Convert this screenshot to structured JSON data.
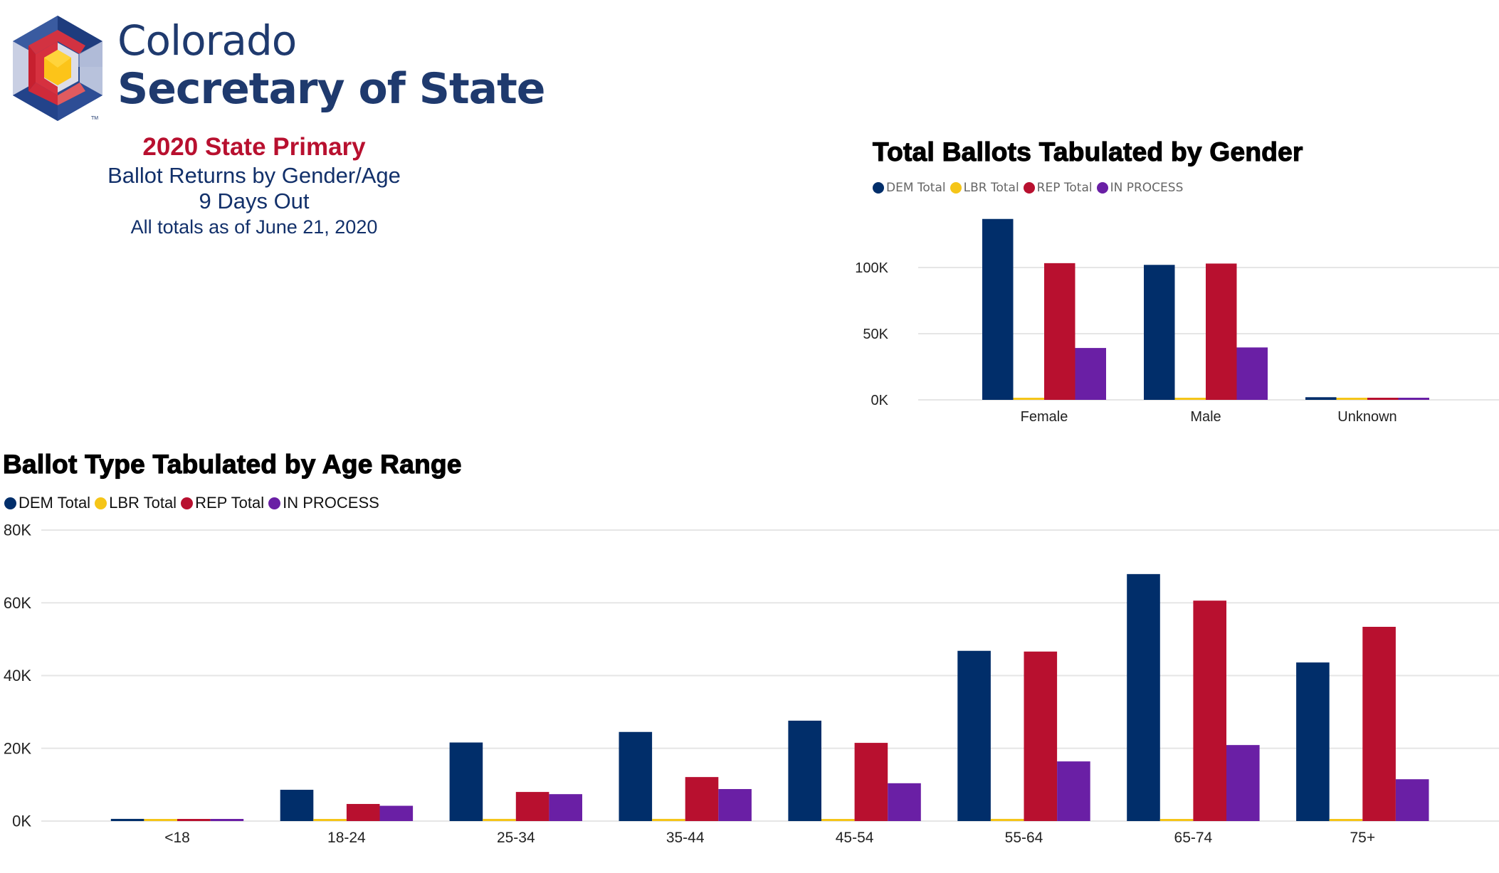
{
  "header": {
    "brand_line1": "Colorado",
    "brand_line2": "Secretary of State",
    "trademark": "TM",
    "report_title": "2020 State Primary",
    "report_subtitle": "Ballot Returns by Gender/Age",
    "days_out": "9 Days Out",
    "as_of": "All totals as of June 21, 2020"
  },
  "colors": {
    "dem": "#012e6a",
    "lbr": "#f5c518",
    "rep": "#b8102f",
    "in_process": "#6a1fa5",
    "brand_navy": "#1f3a6e",
    "brand_red": "#b8102f",
    "gridline": "#e6e6e6"
  },
  "legend": [
    {
      "key": "dem",
      "label": "DEM Total"
    },
    {
      "key": "lbr",
      "label": "LBR Total"
    },
    {
      "key": "rep",
      "label": "REP Total"
    },
    {
      "key": "in_process",
      "label": "IN PROCESS"
    }
  ],
  "chart_data": [
    {
      "id": "gender",
      "type": "bar",
      "title": "Total Ballots Tabulated by Gender",
      "xlabel": "",
      "ylabel": "",
      "categories": [
        "Female",
        "Male",
        "Unknown"
      ],
      "series": [
        {
          "name": "DEM Total",
          "key": "dem",
          "values": [
            136700,
            102000,
            2000
          ]
        },
        {
          "name": "LBR Total",
          "key": "lbr",
          "values": [
            800,
            1600,
            500
          ]
        },
        {
          "name": "REP Total",
          "key": "rep",
          "values": [
            103300,
            103000,
            500
          ]
        },
        {
          "name": "IN PROCESS",
          "key": "in_process",
          "values": [
            39200,
            39600,
            500
          ]
        }
      ],
      "yticks": [
        0,
        50000,
        100000
      ],
      "ytick_labels": [
        "0K",
        "50K",
        "100K"
      ],
      "ylim": [
        0,
        140000
      ],
      "grid": true,
      "legend_position": "top-left"
    },
    {
      "id": "age",
      "type": "bar",
      "title": "Ballot Type Tabulated by Age Range",
      "xlabel": "",
      "ylabel": "",
      "categories": [
        "<18",
        "18-24",
        "25-34",
        "35-44",
        "45-54",
        "55-64",
        "65-74",
        "75+"
      ],
      "series": [
        {
          "name": "DEM Total",
          "key": "dem",
          "values": [
            600,
            8600,
            21600,
            24500,
            27600,
            46800,
            67900,
            43600
          ]
        },
        {
          "name": "LBR Total",
          "key": "lbr",
          "values": [
            300,
            300,
            600,
            600,
            400,
            600,
            300,
            300
          ]
        },
        {
          "name": "REP Total",
          "key": "rep",
          "values": [
            300,
            4700,
            8000,
            12100,
            21500,
            46600,
            60600,
            53400
          ]
        },
        {
          "name": "IN PROCESS",
          "key": "in_process",
          "values": [
            300,
            4200,
            7400,
            8800,
            10400,
            16400,
            20900,
            11500
          ]
        }
      ],
      "yticks": [
        0,
        20000,
        40000,
        60000,
        80000
      ],
      "ytick_labels": [
        "0K",
        "20K",
        "40K",
        "60K",
        "80K"
      ],
      "ylim": [
        0,
        80000
      ],
      "grid": true,
      "legend_position": "top-left"
    }
  ]
}
